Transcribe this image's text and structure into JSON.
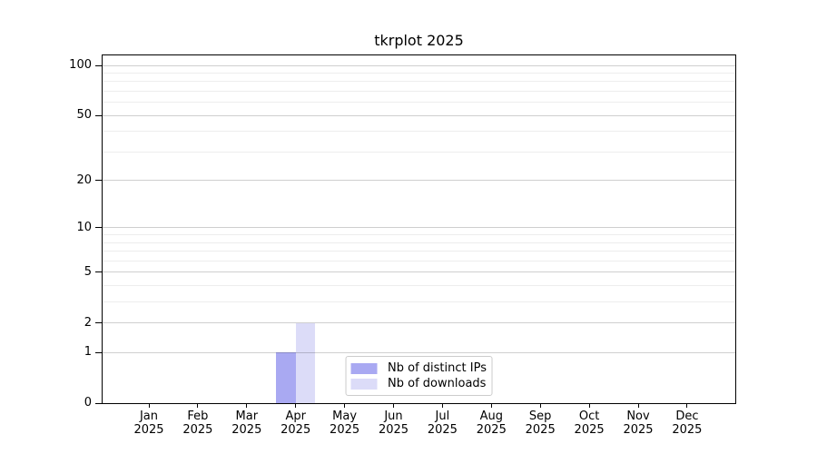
{
  "chart_data": {
    "type": "bar",
    "title": "tkrplot 2025",
    "categories": [
      "Jan",
      "Feb",
      "Mar",
      "Apr",
      "May",
      "Jun",
      "Jul",
      "Aug",
      "Sep",
      "Oct",
      "Nov",
      "Dec"
    ],
    "category_year": "2025",
    "series": [
      {
        "name": "Nb of distinct IPs",
        "color": "#a9a9f2",
        "values": [
          0,
          0,
          0,
          1,
          0,
          0,
          0,
          0,
          0,
          0,
          0,
          0
        ]
      },
      {
        "name": "Nb of downloads",
        "color": "#dcdcf8",
        "values": [
          0,
          0,
          0,
          2,
          0,
          0,
          0,
          0,
          0,
          0,
          0,
          0
        ]
      }
    ],
    "y_axis": {
      "scale": "log1p",
      "major_ticks": [
        0,
        1,
        2,
        5,
        10,
        20,
        50,
        100
      ],
      "minor_gridlines": [
        3,
        4,
        6,
        7,
        8,
        9,
        30,
        40,
        60,
        70,
        80,
        90
      ],
      "ylim": [
        0,
        115
      ]
    },
    "xlabel": "",
    "ylabel": "",
    "grid": "both-horizontal",
    "legend": {
      "position": "lower center",
      "entries": [
        "Nb of distinct IPs",
        "Nb of downloads"
      ]
    }
  },
  "colors": {
    "background": "#ffffff",
    "axis_frame": "#000000",
    "major_grid": "#cfcfcf",
    "minor_grid": "#ececec",
    "legend_border": "#cccccc",
    "bar_distinct_ips": "#a9a9f2",
    "bar_downloads": "#dcdcf8"
  }
}
